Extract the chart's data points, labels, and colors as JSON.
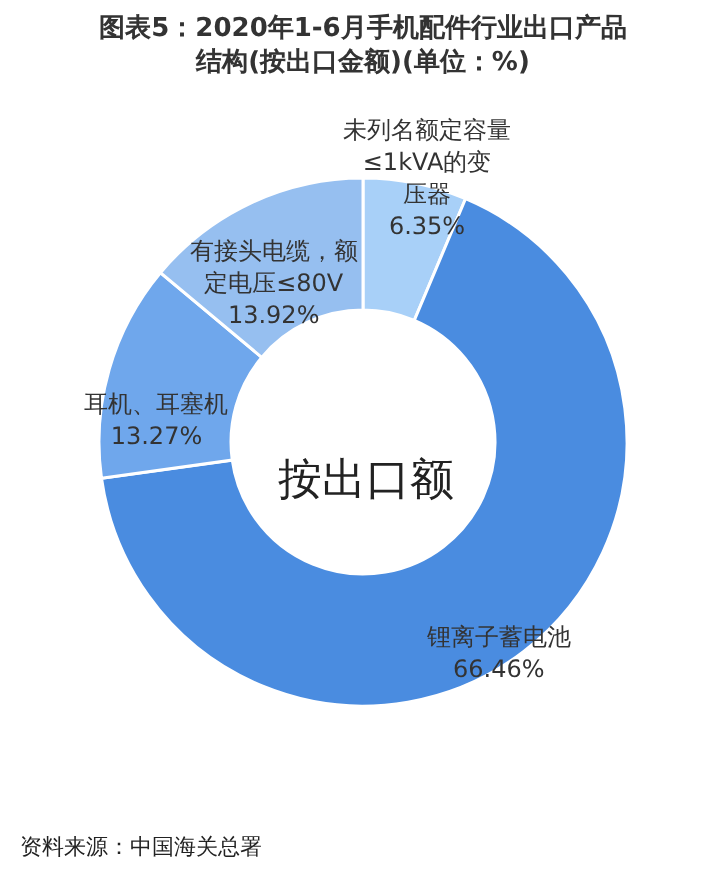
{
  "chart_data": {
    "type": "donut",
    "title": [
      "图表5：2020年1-6月手机配件行业出口产品",
      "结构(按出口金额)(单位：%)"
    ],
    "categories": [
      "未列名额定容量≤1kVA的变压器",
      "锂离子蓄电池",
      "耳机、耳塞机",
      "有接头电缆，额定电压≤80V"
    ],
    "values": [
      6.35,
      66.46,
      13.27,
      13.92
    ],
    "colors": [
      "#a8d0f8",
      "#4a8ce0",
      "#6fa7ec",
      "#96bff0"
    ],
    "value_labels": [
      "6.35%",
      "66.46%",
      "13.27%",
      "13.92%"
    ],
    "annotations": [
      "按出口额",
      "资料来源：中国海关总署"
    ]
  }
}
